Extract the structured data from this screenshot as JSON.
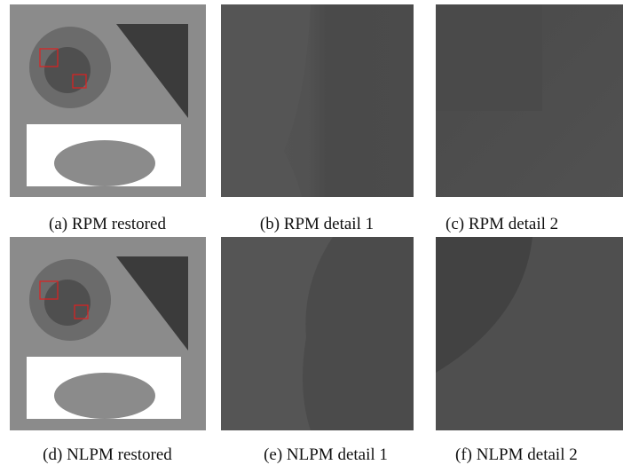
{
  "panels": [
    {
      "caption": "(a) RPM restored"
    },
    {
      "caption": "(b) RPM detail 1"
    },
    {
      "caption": "(c) RPM detail 2"
    },
    {
      "caption": "(d) NLPM restored"
    },
    {
      "caption": "(e) NLPM detail 1"
    },
    {
      "caption": "(f) NLPM detail 2"
    }
  ]
}
